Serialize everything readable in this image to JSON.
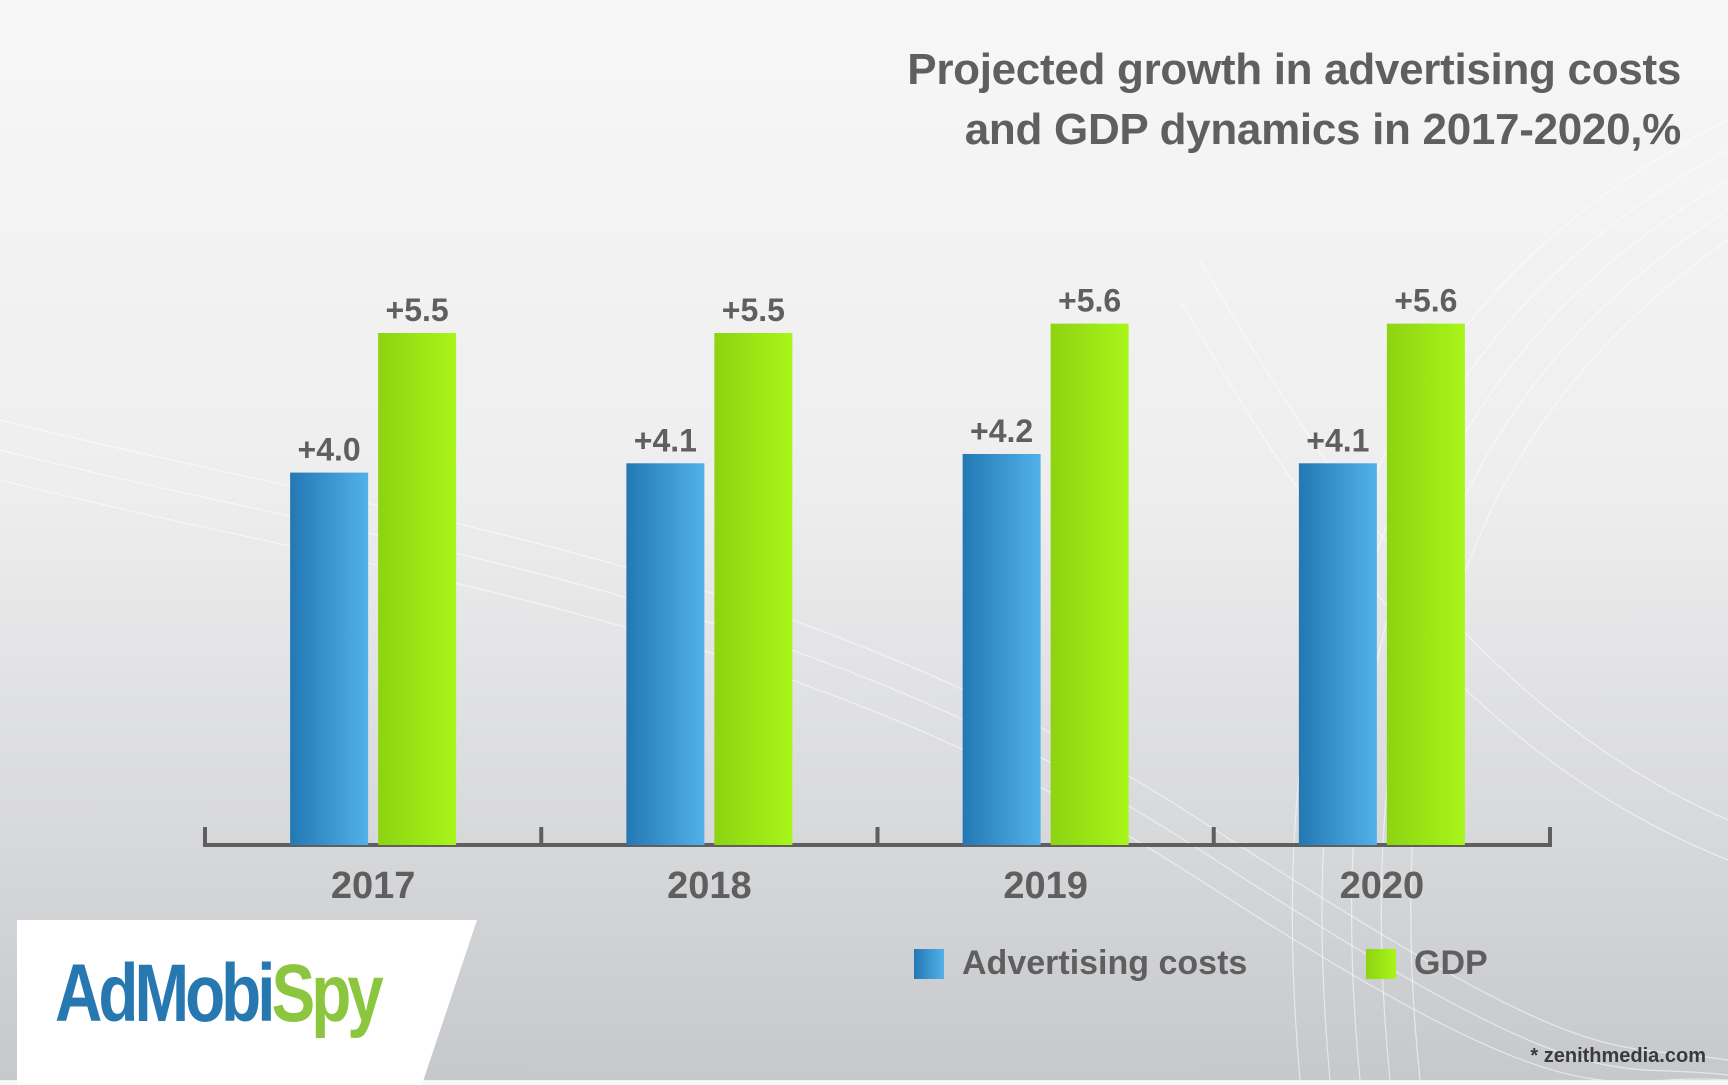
{
  "title_lines": [
    "Projected growth in advertising costs",
    "and GDP dynamics in 2017-2020,%"
  ],
  "chart_data": {
    "type": "bar",
    "title": "Projected growth in advertising costs and GDP dynamics in 2017-2020,%",
    "categories": [
      "2017",
      "2018",
      "2019",
      "2020"
    ],
    "series": [
      {
        "name": "Advertising costs",
        "values": [
          4.0,
          4.1,
          4.2,
          4.1
        ],
        "labels": [
          "+4.0",
          "+4.1",
          "+4.2",
          "+4.1"
        ],
        "color": "#3a9ad9"
      },
      {
        "name": "GDP",
        "values": [
          5.5,
          5.5,
          5.6,
          5.6
        ],
        "labels": [
          "+5.5",
          "+5.5",
          "+5.6",
          "+5.6"
        ],
        "color": "#9ee817"
      }
    ],
    "xlabel": "",
    "ylabel": "",
    "grid": false,
    "legend_position": "bottom-right"
  },
  "logo": {
    "part1": "Ad",
    "part2": "Mobi",
    "part3": "Spy",
    "colors": {
      "primary": "#2778b0",
      "accent": "#8cc63f"
    }
  },
  "source": "* zenithmedia.com"
}
